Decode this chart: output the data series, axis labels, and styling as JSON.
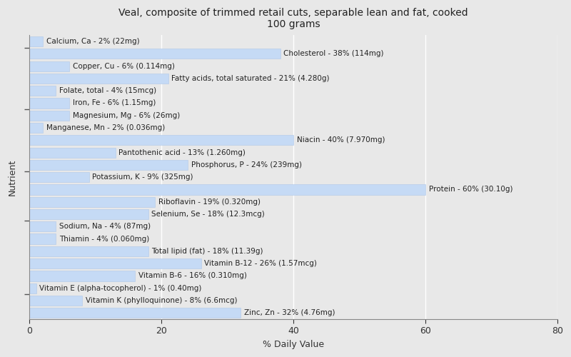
{
  "title": "Veal, composite of trimmed retail cuts, separable lean and fat, cooked\n100 grams",
  "xlabel": "% Daily Value",
  "ylabel": "Nutrient",
  "background_color": "#e8e8e8",
  "plot_bg_color": "#e8e8e8",
  "bar_color": "#c5daf5",
  "bar_edge_color": "#b0c8e8",
  "nutrients": [
    {
      "label": "Calcium, Ca - 2% (22mg)",
      "value": 2
    },
    {
      "label": "Cholesterol - 38% (114mg)",
      "value": 38
    },
    {
      "label": "Copper, Cu - 6% (0.114mg)",
      "value": 6
    },
    {
      "label": "Fatty acids, total saturated - 21% (4.280g)",
      "value": 21
    },
    {
      "label": "Folate, total - 4% (15mcg)",
      "value": 4
    },
    {
      "label": "Iron, Fe - 6% (1.15mg)",
      "value": 6
    },
    {
      "label": "Magnesium, Mg - 6% (26mg)",
      "value": 6
    },
    {
      "label": "Manganese, Mn - 2% (0.036mg)",
      "value": 2
    },
    {
      "label": "Niacin - 40% (7.970mg)",
      "value": 40
    },
    {
      "label": "Pantothenic acid - 13% (1.260mg)",
      "value": 13
    },
    {
      "label": "Phosphorus, P - 24% (239mg)",
      "value": 24
    },
    {
      "label": "Potassium, K - 9% (325mg)",
      "value": 9
    },
    {
      "label": "Protein - 60% (30.10g)",
      "value": 60
    },
    {
      "label": "Riboflavin - 19% (0.320mg)",
      "value": 19
    },
    {
      "label": "Selenium, Se - 18% (12.3mcg)",
      "value": 18
    },
    {
      "label": "Sodium, Na - 4% (87mg)",
      "value": 4
    },
    {
      "label": "Thiamin - 4% (0.060mg)",
      "value": 4
    },
    {
      "label": "Total lipid (fat) - 18% (11.39g)",
      "value": 18
    },
    {
      "label": "Vitamin B-12 - 26% (1.57mcg)",
      "value": 26
    },
    {
      "label": "Vitamin B-6 - 16% (0.310mg)",
      "value": 16
    },
    {
      "label": "Vitamin E (alpha-tocopherol) - 1% (0.40mg)",
      "value": 1
    },
    {
      "label": "Vitamin K (phylloquinone) - 8% (6.6mcg)",
      "value": 8
    },
    {
      "label": "Zinc, Zn - 32% (4.76mg)",
      "value": 32
    }
  ],
  "xlim": [
    0,
    80
  ],
  "xticks": [
    0,
    20,
    40,
    60,
    80
  ],
  "title_fontsize": 10,
  "label_fontsize": 7.5,
  "tick_fontsize": 9,
  "ytick_positions": [
    1.5,
    7.5,
    11.5,
    16.5,
    21.5
  ]
}
